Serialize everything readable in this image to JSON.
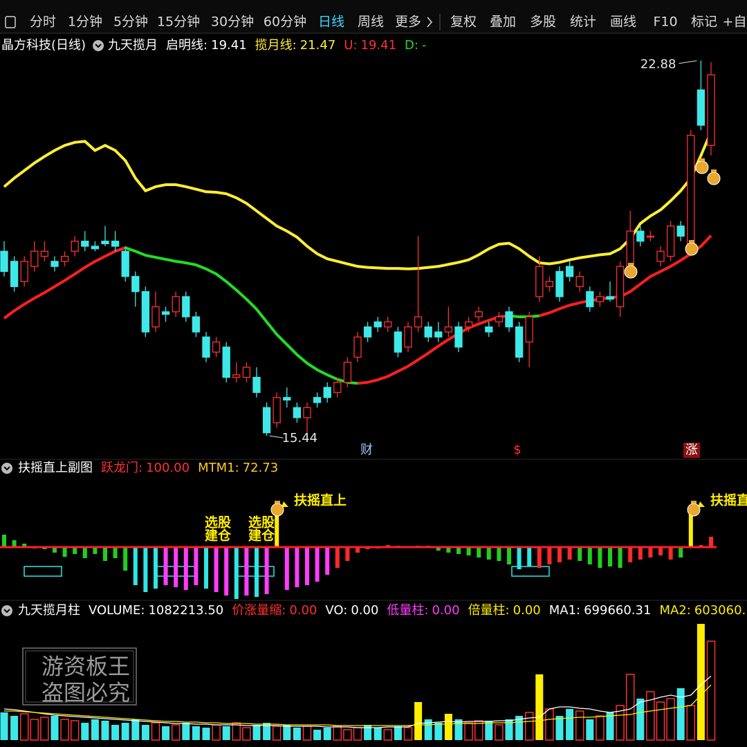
{
  "toolbar": [
    {
      "label": "分时"
    },
    {
      "label": "1分钟"
    },
    {
      "label": "5分钟"
    },
    {
      "label": "15分钟"
    },
    {
      "label": "30分钟"
    },
    {
      "label": "60分钟"
    },
    {
      "label": "日线",
      "active": true
    },
    {
      "label": "周线"
    },
    {
      "label": "更多"
    },
    {
      "label": "复权"
    },
    {
      "label": "叠加"
    },
    {
      "label": "多股"
    },
    {
      "label": "统计"
    },
    {
      "label": "画线"
    },
    {
      "label": "F10"
    },
    {
      "label": "标记"
    },
    {
      "label": "+自"
    }
  ],
  "watermark": [
    "游资板王",
    "盗图必究"
  ],
  "chart_data": [
    {
      "type": "candlestick",
      "title": "晶方科技(日线)",
      "indicator": "九天揽月",
      "legend": [
        {
          "label": "启明线:",
          "value": 19.41,
          "color": "#ffffff"
        },
        {
          "label": "揽月线:",
          "value": 21.47,
          "color": "#ffee33"
        },
        {
          "label": "U:",
          "value": 19.41,
          "color": "#ff3030"
        },
        {
          "label": "D:",
          "value": "-",
          "color": "#22dd22"
        }
      ],
      "up_color": "#ff3030",
      "down_color": "#3ee8e8",
      "open": [
        19.1,
        18.9,
        18.5,
        18.8,
        19.0,
        18.9,
        18.9,
        19.1,
        19.3,
        19.2,
        19.3,
        19.3,
        19.1,
        18.6,
        18.3,
        17.6,
        17.9,
        17.9,
        18.2,
        17.8,
        17.4,
        17.1,
        17.2,
        16.6,
        16.6,
        16.6,
        16.0,
        15.7,
        16.2,
        16.0,
        15.8,
        16.2,
        16.4,
        16.3,
        16.5,
        17.0,
        17.6,
        17.7,
        17.6,
        17.5,
        17.2,
        17.6,
        17.6,
        17.5,
        17.5,
        17.6,
        17.6,
        17.8,
        17.6,
        17.7,
        17.9,
        17.6,
        17.3,
        18.2,
        18.4,
        18.7,
        18.8,
        18.4,
        18.3,
        18.1,
        18.2,
        18.0,
        18.8,
        19.5,
        19.4,
        18.9,
        19.0,
        19.6,
        19.1,
        22.3,
        21.2
      ],
      "high": [
        19.3,
        19.0,
        19.0,
        19.3,
        19.3,
        19.0,
        19.1,
        19.4,
        19.5,
        19.3,
        19.6,
        19.5,
        19.2,
        18.7,
        18.4,
        18.3,
        18.0,
        18.3,
        18.3,
        17.9,
        17.5,
        17.4,
        17.3,
        16.9,
        16.9,
        16.8,
        16.1,
        16.3,
        16.4,
        16.1,
        16.1,
        16.3,
        16.5,
        16.6,
        17.0,
        17.5,
        17.7,
        17.8,
        17.8,
        17.6,
        17.7,
        19.4,
        17.7,
        17.7,
        18.0,
        17.7,
        17.8,
        18.0,
        17.7,
        17.9,
        18.0,
        17.7,
        17.9,
        19.0,
        18.6,
        18.8,
        18.9,
        18.7,
        18.4,
        18.3,
        18.5,
        18.9,
        19.9,
        19.6,
        19.5,
        19.2,
        19.7,
        19.7,
        21.5,
        22.88,
        22.85
      ],
      "low": [
        18.6,
        18.3,
        18.4,
        18.7,
        18.9,
        18.7,
        18.8,
        19.0,
        19.1,
        19.1,
        19.2,
        19.1,
        18.5,
        18.0,
        17.4,
        17.5,
        17.7,
        17.8,
        17.7,
        17.4,
        16.9,
        17.0,
        16.5,
        16.5,
        16.5,
        16.2,
        15.44,
        15.6,
        16.0,
        15.7,
        15.5,
        16.0,
        16.1,
        16.2,
        16.4,
        16.9,
        17.3,
        17.5,
        17.5,
        17.0,
        17.1,
        17.5,
        17.3,
        17.3,
        17.4,
        17.1,
        17.5,
        17.7,
        17.4,
        17.6,
        17.5,
        16.9,
        16.8,
        18.1,
        18.3,
        18.1,
        18.5,
        18.3,
        17.9,
        18.0,
        18.1,
        17.8,
        18.7,
        19.2,
        19.3,
        18.8,
        18.9,
        19.3,
        19.0,
        21.5,
        21.0
      ],
      "close": [
        18.7,
        18.4,
        18.9,
        19.1,
        19.1,
        18.8,
        19.0,
        19.3,
        19.2,
        19.15,
        19.25,
        19.2,
        18.6,
        18.3,
        17.5,
        18.0,
        17.85,
        18.2,
        17.8,
        17.5,
        17.0,
        17.3,
        16.6,
        16.65,
        16.8,
        16.3,
        15.5,
        16.2,
        16.15,
        15.8,
        16.0,
        16.1,
        16.2,
        16.5,
        16.9,
        17.4,
        17.4,
        17.6,
        17.7,
        17.1,
        17.6,
        17.8,
        17.4,
        17.4,
        17.6,
        17.2,
        17.7,
        17.9,
        17.5,
        17.8,
        17.6,
        17.0,
        17.8,
        18.8,
        18.5,
        18.2,
        18.6,
        18.6,
        18.0,
        18.2,
        18.15,
        18.8,
        19.5,
        19.3,
        19.4,
        19.1,
        19.6,
        19.4,
        21.4,
        21.6,
        22.6
      ],
      "series": [
        {
          "color": "#ffee33",
          "values": [
            20.38,
            20.55,
            20.7,
            20.85,
            20.98,
            21.1,
            21.2,
            21.26,
            21.28,
            21.1,
            21.2,
            21.1,
            20.9,
            20.55,
            20.3,
            20.38,
            20.42,
            20.42,
            20.38,
            20.33,
            20.28,
            20.27,
            20.24,
            20.16,
            20.05,
            19.9,
            19.75,
            19.6,
            19.5,
            19.38,
            19.2,
            19.05,
            18.95,
            18.9,
            18.85,
            18.8,
            18.78,
            18.77,
            18.76,
            18.76,
            18.75,
            18.76,
            18.78,
            18.8,
            18.84,
            18.88,
            18.93,
            19.03,
            19.15,
            19.24,
            19.26,
            19.15,
            19.0,
            18.87,
            18.85,
            18.88,
            18.93,
            18.97,
            19.0,
            19.03,
            19.05,
            19.15,
            19.35,
            19.65,
            19.8,
            19.92,
            20.1,
            20.3,
            20.55,
            21.0,
            21.47
          ]
        },
        {
          "values": [
            17.77,
            17.92,
            18.05,
            18.17,
            18.28,
            18.4,
            18.52,
            18.65,
            18.78,
            18.9,
            19.0,
            19.1,
            19.17,
            19.1,
            19.02,
            18.98,
            18.94,
            18.9,
            18.87,
            18.83,
            18.75,
            18.65,
            18.5,
            18.33,
            18.15,
            17.95,
            17.7,
            17.45,
            17.25,
            17.05,
            16.88,
            16.75,
            16.65,
            16.56,
            16.5,
            16.48,
            16.5,
            16.55,
            16.62,
            16.72,
            16.82,
            16.95,
            17.08,
            17.22,
            17.35,
            17.47,
            17.58,
            17.66,
            17.73,
            17.8,
            17.82,
            17.8,
            17.8,
            17.82,
            17.88,
            17.96,
            18.03,
            18.08,
            18.12,
            18.15,
            18.18,
            18.2,
            18.3,
            18.45,
            18.6,
            18.7,
            18.8,
            18.92,
            19.05,
            19.2,
            19.41
          ],
          "colors": [
            "#ff2020",
            "#ff2020",
            "#ff2020",
            "#ff2020",
            "#ff2020",
            "#ff2020",
            "#ff2020",
            "#ff2020",
            "#ff2020",
            "#ff2020",
            "#ff2020",
            "#ff2020",
            "#ff2020",
            "#22dd22",
            "#22dd22",
            "#22dd22",
            "#22dd22",
            "#22dd22",
            "#22dd22",
            "#22dd22",
            "#22dd22",
            "#22dd22",
            "#22dd22",
            "#22dd22",
            "#22dd22",
            "#22dd22",
            "#22dd22",
            "#22dd22",
            "#22dd22",
            "#22dd22",
            "#22dd22",
            "#22dd22",
            "#22dd22",
            "#22dd22",
            "#22dd22",
            "#22dd22",
            "#ff2020",
            "#ff2020",
            "#ff2020",
            "#ff2020",
            "#ff2020",
            "#ff2020",
            "#ff2020",
            "#ff2020",
            "#ff2020",
            "#ff2020",
            "#ff2020",
            "#ff2020",
            "#ff2020",
            "#ff2020",
            "#ff2020",
            "#22dd22",
            "#22dd22",
            "#22dd22",
            "#ff2020",
            "#ff2020",
            "#ff2020",
            "#ff2020",
            "#ff2020",
            "#ff2020",
            "#ff2020",
            "#ff2020",
            "#ff2020",
            "#ff2020",
            "#ff2020",
            "#ff2020",
            "#ff2020",
            "#ff2020",
            "#ff2020",
            "#ff2020",
            "#ff2020"
          ]
        }
      ],
      "annotations": [
        {
          "value": 22.88
        },
        {
          "value": 15.44
        }
      ],
      "events": [
        {
          "label": "财",
          "color": "#9fc8ff"
        },
        {
          "label": "$",
          "color": "#ff3030"
        },
        {
          "label": "涨",
          "color": "#ffffff"
        }
      ],
      "ylim": [
        15.03,
        23.26
      ]
    },
    {
      "type": "bar",
      "title": "扶摇直上副图",
      "legend": [
        {
          "label": "跃龙门:",
          "value": 100,
          "value_label": "100.00",
          "color": "#ff3030"
        },
        {
          "label": "MTM1:",
          "value": 72.73,
          "color": "#ffcc22"
        }
      ],
      "values": [
        18,
        10,
        5,
        -2,
        -3,
        -8,
        -14,
        -10,
        -16,
        -10,
        -20,
        -16,
        -34,
        -55,
        -65,
        -60,
        -55,
        -58,
        -62,
        -55,
        -60,
        -65,
        -70,
        -75,
        -70,
        -72,
        -68,
        50,
        -62,
        -58,
        -55,
        -50,
        -40,
        -30,
        -20,
        -8,
        -3,
        -2,
        3,
        2,
        1,
        2,
        2,
        -5,
        -8,
        -10,
        -12,
        -15,
        -18,
        -20,
        -25,
        -32,
        -28,
        -30,
        -25,
        -22,
        -18,
        -20,
        -25,
        -30,
        -28,
        -30,
        -22,
        -18,
        -15,
        -12,
        -18,
        -15,
        50,
        3,
        15
      ],
      "colors": [
        "#1fd01f",
        "#1fd01f",
        "#1fd01f",
        "#ff2a2a",
        "#1fd01f",
        "#1fd01f",
        "#1fd01f",
        "#1fd01f",
        "#1fd01f",
        "#1fd01f",
        "#1fd01f",
        "#1fd01f",
        "#1fd01f",
        "#2ee6e6",
        "#2ee6e6",
        "#2ee6e6",
        "#ff3cff",
        "#ff3cff",
        "#ff3cff",
        "#ff3cff",
        "#2ee6e6",
        "#ff3cff",
        "#ff3cff",
        "#2ee6e6",
        "#ff3cff",
        "#2ee6e6",
        "#ff3cff",
        "#ffee00",
        "#ff3cff",
        "#ff3cff",
        "#ff3cff",
        "#ff3cff",
        "#ff3cff",
        "#ff2a2a",
        "#ff2a2a",
        "#ff2a2a",
        "#ff2a2a",
        "#ff2a2a",
        "#ff2a2a",
        "#ff2a2a",
        "#ff2a2a",
        "#ff2a2a",
        "#ff2a2a",
        "#1fd01f",
        "#1fd01f",
        "#1fd01f",
        "#1fd01f",
        "#1fd01f",
        "#1fd01f",
        "#1fd01f",
        "#1fd01f",
        "#2ee6e6",
        "#2ee6e6",
        "#ff2a2a",
        "#ff2a2a",
        "#ff2a2a",
        "#ff2a2a",
        "#1fd01f",
        "#1fd01f",
        "#1fd01f",
        "#1fd01f",
        "#1fd01f",
        "#ff2a2a",
        "#ff2a2a",
        "#ff2a2a",
        "#ff2a2a",
        "#ff2a2a",
        "#1fd01f",
        "#ffee00",
        "#ff2a2a",
        "#ff2a2a"
      ],
      "annotations": [
        {
          "text": "扶摇直上"
        },
        {
          "text": "扶摇直上"
        },
        {
          "text": "选股"
        },
        {
          "text": "建仓"
        },
        {
          "text": "选股"
        },
        {
          "text": "建仓"
        }
      ],
      "ylim": [
        -79,
        91
      ]
    },
    {
      "type": "bar",
      "title": "九天揽月柱",
      "legend": [
        {
          "label": "VOLUME:",
          "value": 1082213.5,
          "value_label": "1082213.50",
          "color": "#ffffff"
        },
        {
          "label": "价涨量缩:",
          "value": 0,
          "value_label": "0.00",
          "color": "#ff3030"
        },
        {
          "label": "VO:",
          "value": 0,
          "value_label": "0.00",
          "color": "#ffffff"
        },
        {
          "label": "低量柱:",
          "value": 0,
          "value_label": "0.00",
          "color": "#ff3cff"
        },
        {
          "label": "倍量柱:",
          "value": 0,
          "value_label": "0.00",
          "color": "#ffee00"
        },
        {
          "label": "MA1:",
          "value": 699660.31,
          "color": "#ffffff"
        },
        {
          "label": "MA2:",
          "value": 603060,
          "value_label": "603060.",
          "color": "#ffee00"
        }
      ],
      "up_color": "#ff3030",
      "values": [
        302700,
        264900,
        287600,
        227000,
        249700,
        264900,
        227000,
        211900,
        189200,
        227000,
        211900,
        166500,
        189200,
        227000,
        166500,
        189200,
        151400,
        166500,
        189200,
        151400,
        136200,
        166500,
        151400,
        189200,
        136200,
        166500,
        189200,
        151400,
        166500,
        136200,
        151400,
        113500,
        136200,
        151400,
        113500,
        136200,
        166500,
        136200,
        113500,
        151400,
        136200,
        416200,
        227000,
        189200,
        287600,
        227000,
        189200,
        211900,
        211900,
        166500,
        227000,
        264900,
        302700,
        719000,
        340600,
        264900,
        340600,
        317900,
        227000,
        264900,
        302700,
        378400,
        719000,
        454100,
        529800,
        416200,
        454100,
        567600,
        378400,
        1271400,
        1082213.5
      ],
      "colors": [
        "#3ee8e8",
        "#3ee8e8",
        "#ff3030",
        "#ff3030",
        "#ff3030",
        "#3ee8e8",
        "#ff3030",
        "#ff3030",
        "#3ee8e8",
        "#3ee8e8",
        "#3ee8e8",
        "#3ee8e8",
        "#3ee8e8",
        "#3ee8e8",
        "#3ee8e8",
        "#ff3030",
        "#3ee8e8",
        "#ff3030",
        "#3ee8e8",
        "#3ee8e8",
        "#3ee8e8",
        "#ff3030",
        "#3ee8e8",
        "#ff3030",
        "#ff3030",
        "#3ee8e8",
        "#3ee8e8",
        "#ff3030",
        "#3ee8e8",
        "#3ee8e8",
        "#ff3030",
        "#3ee8e8",
        "#3ee8e8",
        "#ff3030",
        "#ff3030",
        "#ff3030",
        "#3ee8e8",
        "#3ee8e8",
        "#ff3030",
        "#3ee8e8",
        "#ff3030",
        "#ffee00",
        "#3ee8e8",
        "#3ee8e8",
        "#ffee00",
        "#3ee8e8",
        "#ff3030",
        "#ff3030",
        "#3ee8e8",
        "#ff3030",
        "#3ee8e8",
        "#3ee8e8",
        "#ff3030",
        "#ffee00",
        "#ff3030",
        "#3ee8e8",
        "#3ee8e8",
        "#ff3030",
        "#3ee8e8",
        "#ff3030",
        "#3ee8e8",
        "#ff3030",
        "#ff3030",
        "#3ee8e8",
        "#ff3030",
        "#ff3030",
        "#ff3030",
        "#3ee8e8",
        "#ff3030",
        "#ffee00",
        "#ff3030"
      ],
      "series": [
        {
          "color": "#ffffff",
          "values": [
            340600,
            333000,
            317900,
            302700,
            287600,
            272400,
            264900,
            257300,
            249700,
            242200,
            234600,
            227000,
            219500,
            211900,
            204300,
            196800,
            189200,
            181600,
            181600,
            174100,
            174100,
            166500,
            166500,
            166500,
            158900,
            158900,
            158900,
            158900,
            151400,
            151400,
            151400,
            151400,
            143800,
            143800,
            143800,
            136200,
            136200,
            136200,
            143800,
            143800,
            143800,
            181600,
            189200,
            196800,
            204300,
            196800,
            204300,
            204300,
            204300,
            211900,
            211900,
            227000,
            242200,
            249700,
            340600,
            363300,
            363300,
            348100,
            340600,
            317900,
            302700,
            317900,
            340600,
            416200,
            438900,
            469200,
            491900,
            469200,
            491900,
            605400,
            699660.31
          ]
        },
        {
          "color": "#ffee00",
          "values": [
            317900,
            317900,
            310300,
            302700,
            295200,
            287600,
            280000,
            272400,
            264900,
            257300,
            249700,
            242200,
            234600,
            227000,
            219500,
            211900,
            204300,
            204300,
            196800,
            196800,
            189200,
            189200,
            181600,
            181600,
            181600,
            174100,
            174100,
            174100,
            166500,
            166500,
            166500,
            166500,
            166500,
            158900,
            158900,
            158900,
            158900,
            158900,
            158900,
            158900,
            158900,
            166500,
            166500,
            174100,
            174100,
            181600,
            181600,
            181600,
            189200,
            189200,
            189200,
            196800,
            204300,
            211900,
            227000,
            234600,
            242200,
            249700,
            249700,
            257300,
            264900,
            272400,
            280000,
            302700,
            317900,
            333000,
            348100,
            363300,
            378400,
            491900,
            603060
          ]
        }
      ],
      "ylim": [
        0,
        1286600
      ]
    }
  ]
}
